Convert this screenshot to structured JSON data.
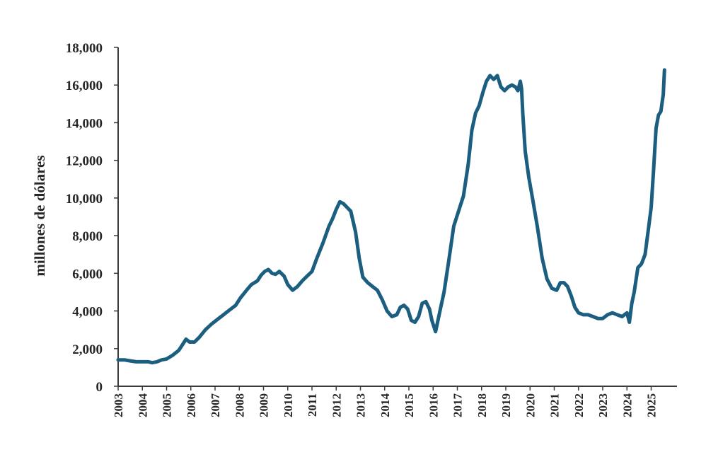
{
  "chart_data": {
    "type": "line",
    "title": "",
    "xlabel": "",
    "ylabel": "millones de dólares",
    "ylim": [
      0,
      18000
    ],
    "xlim": [
      2003,
      2025.75
    ],
    "y_ticks": [
      "0",
      "2,000",
      "4,000",
      "6,000",
      "8,000",
      "10,000",
      "12,000",
      "14,000",
      "16,000",
      "18,000"
    ],
    "x_ticks": [
      "2003",
      "2004",
      "2005",
      "2006",
      "2007",
      "2008",
      "2009",
      "2010",
      "2011",
      "2012",
      "2013",
      "2014",
      "2015",
      "2016",
      "2017",
      "2018",
      "2019",
      "2020",
      "2021",
      "2022",
      "2023",
      "2024",
      "2025"
    ],
    "grid": false,
    "legend": "none",
    "line_color": "#1b5e80",
    "series": [
      {
        "x": [
          2003.0,
          2003.25,
          2003.5,
          2003.75,
          2004.0,
          2004.25,
          2004.4,
          2004.6,
          2004.8,
          2005.0,
          2005.25,
          2005.5,
          2005.65,
          2005.8,
          2005.95,
          2006.15,
          2006.35,
          2006.6,
          2006.85,
          2007.1,
          2007.35,
          2007.6,
          2007.85,
          2008.05,
          2008.3,
          2008.5,
          2008.75,
          2008.9,
          2009.05,
          2009.2,
          2009.35,
          2009.5,
          2009.65,
          2009.85,
          2010.0,
          2010.2,
          2010.4,
          2010.6,
          2010.8,
          2011.0,
          2011.2,
          2011.45,
          2011.7,
          2011.85,
          2012.0,
          2012.15,
          2012.3,
          2012.45,
          2012.6,
          2012.8,
          2012.95,
          2013.1,
          2013.3,
          2013.5,
          2013.7,
          2013.9,
          2014.1,
          2014.3,
          2014.5,
          2014.65,
          2014.8,
          2014.95,
          2015.1,
          2015.25,
          2015.4,
          2015.55,
          2015.7,
          2015.85,
          2015.95,
          2016.1,
          2016.25,
          2016.45,
          2016.65,
          2016.85,
          2017.05,
          2017.25,
          2017.45,
          2017.6,
          2017.75,
          2017.9,
          2018.05,
          2018.2,
          2018.35,
          2018.5,
          2018.65,
          2018.8,
          2018.95,
          2019.1,
          2019.25,
          2019.4,
          2019.5,
          2019.6,
          2019.65,
          2019.7,
          2019.8,
          2019.95,
          2020.1,
          2020.3,
          2020.5,
          2020.7,
          2020.9,
          2021.1,
          2021.25,
          2021.4,
          2021.55,
          2021.7,
          2021.85,
          2022.0,
          2022.2,
          2022.4,
          2022.6,
          2022.8,
          2023.0,
          2023.2,
          2023.4,
          2023.6,
          2023.8,
          2024.0,
          2024.1,
          2024.2,
          2024.3,
          2024.45,
          2024.6,
          2024.75,
          2024.9,
          2025.0,
          2025.1,
          2025.2,
          2025.3,
          2025.4,
          2025.5,
          2025.55
        ],
        "values": [
          1400,
          1400,
          1350,
          1300,
          1300,
          1300,
          1250,
          1300,
          1400,
          1450,
          1650,
          1900,
          2200,
          2500,
          2350,
          2350,
          2600,
          3000,
          3300,
          3550,
          3800,
          4050,
          4300,
          4700,
          5100,
          5400,
          5600,
          5900,
          6100,
          6200,
          6000,
          5950,
          6100,
          5850,
          5400,
          5100,
          5300,
          5600,
          5850,
          6100,
          6800,
          7600,
          8500,
          8900,
          9400,
          9800,
          9700,
          9500,
          9300,
          8200,
          6800,
          5800,
          5500,
          5300,
          5100,
          4600,
          4000,
          3700,
          3800,
          4200,
          4300,
          4100,
          3500,
          3400,
          3700,
          4400,
          4500,
          4100,
          3500,
          2900,
          3800,
          5000,
          6700,
          8500,
          9300,
          10100,
          11800,
          13600,
          14500,
          14900,
          15600,
          16200,
          16500,
          16300,
          16500,
          15900,
          15700,
          15900,
          16000,
          15900,
          15700,
          16200,
          15800,
          14500,
          12500,
          11100,
          10000,
          8500,
          6800,
          5700,
          5200,
          5100,
          5500,
          5500,
          5300,
          4800,
          4200,
          3900,
          3800,
          3800,
          3700,
          3600,
          3600,
          3800,
          3900,
          3800,
          3700,
          3900,
          3400,
          4400,
          5000,
          6300,
          6500,
          7000,
          8500,
          9500,
          11500,
          13700,
          14400,
          14600,
          15500,
          16800
        ]
      }
    ]
  }
}
